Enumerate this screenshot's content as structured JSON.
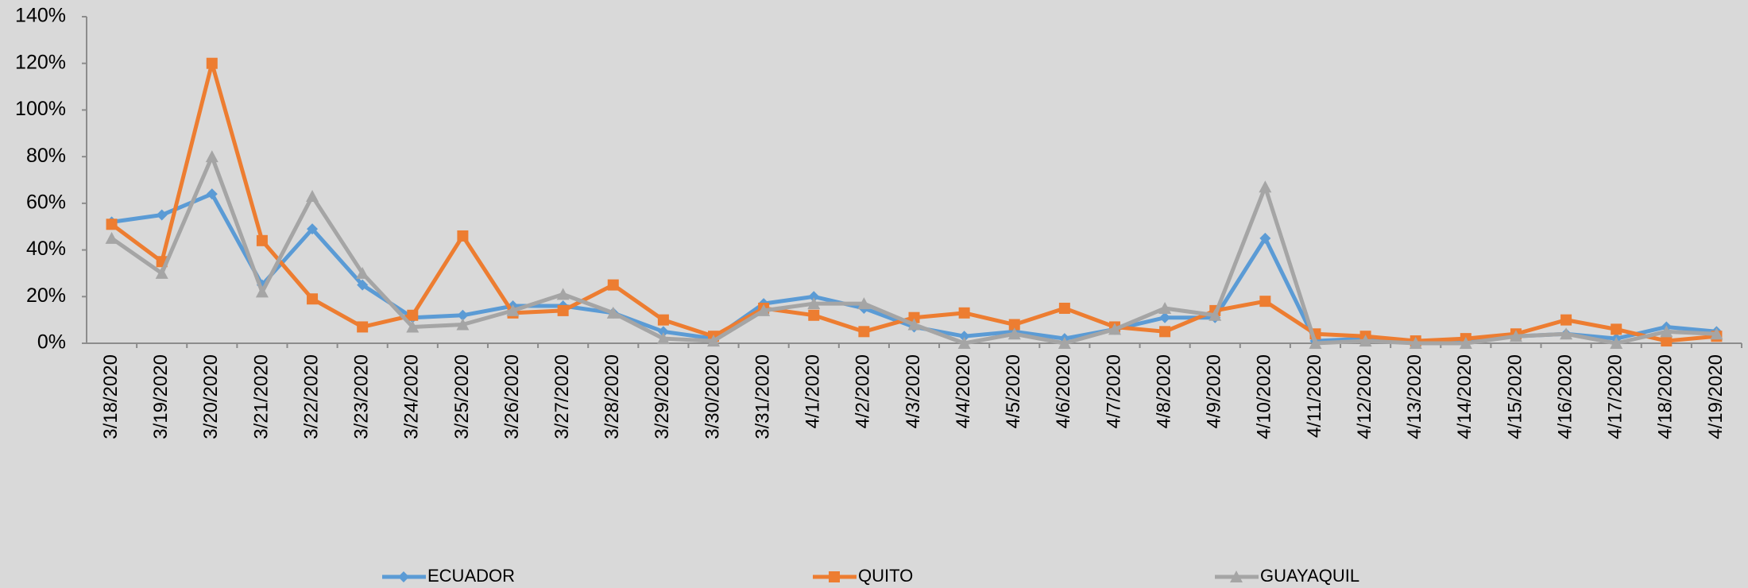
{
  "chart_data": {
    "type": "line",
    "categories": [
      "3/18/2020",
      "3/19/2020",
      "3/20/2020",
      "3/21/2020",
      "3/22/2020",
      "3/23/2020",
      "3/24/2020",
      "3/25/2020",
      "3/26/2020",
      "3/27/2020",
      "3/28/2020",
      "3/29/2020",
      "3/30/2020",
      "3/31/2020",
      "4/1/2020",
      "4/2/2020",
      "4/3/2020",
      "4/4/2020",
      "4/5/2020",
      "4/6/2020",
      "4/7/2020",
      "4/8/2020",
      "4/9/2020",
      "4/10/2020",
      "4/11/2020",
      "4/12/2020",
      "4/13/2020",
      "4/14/2020",
      "4/15/2020",
      "4/16/2020",
      "4/17/2020",
      "4/18/2020",
      "4/19/2020"
    ],
    "series": [
      {
        "name": "ECUADOR",
        "color": "#5b9bd5",
        "marker": "diamond",
        "values": [
          52,
          55,
          64,
          25,
          49,
          25,
          11,
          12,
          16,
          16,
          13,
          5,
          2,
          17,
          20,
          15,
          7,
          3,
          5,
          2,
          6,
          11,
          11,
          45,
          1,
          2,
          0,
          1,
          3,
          4,
          2,
          7,
          5
        ]
      },
      {
        "name": "QUITO",
        "color": "#ed7d31",
        "marker": "square",
        "values": [
          51,
          35,
          120,
          44,
          19,
          7,
          12,
          46,
          13,
          14,
          25,
          10,
          3,
          15,
          12,
          5,
          11,
          13,
          8,
          15,
          7,
          5,
          14,
          18,
          4,
          3,
          1,
          2,
          4,
          10,
          6,
          1,
          3
        ]
      },
      {
        "name": "GUAYAQUIL",
        "color": "#a5a5a5",
        "marker": "triangle",
        "values": [
          45,
          30,
          80,
          22,
          63,
          30,
          7,
          8,
          14,
          21,
          13,
          2,
          1,
          14,
          17,
          17,
          8,
          0,
          4,
          0,
          6,
          15,
          12,
          67,
          0,
          1,
          0,
          0,
          3,
          4,
          0,
          5,
          4
        ]
      }
    ],
    "ylim": [
      0,
      140
    ],
    "yticks": [
      {
        "value": 0,
        "label": "0%"
      },
      {
        "value": 20,
        "label": "20%"
      },
      {
        "value": 40,
        "label": "40%"
      },
      {
        "value": 60,
        "label": "60%"
      },
      {
        "value": 80,
        "label": "80%"
      },
      {
        "value": 100,
        "label": "100%"
      },
      {
        "value": 120,
        "label": "120%"
      },
      {
        "value": 140,
        "label": "140%"
      }
    ],
    "grid": false,
    "legend": "bottom"
  }
}
